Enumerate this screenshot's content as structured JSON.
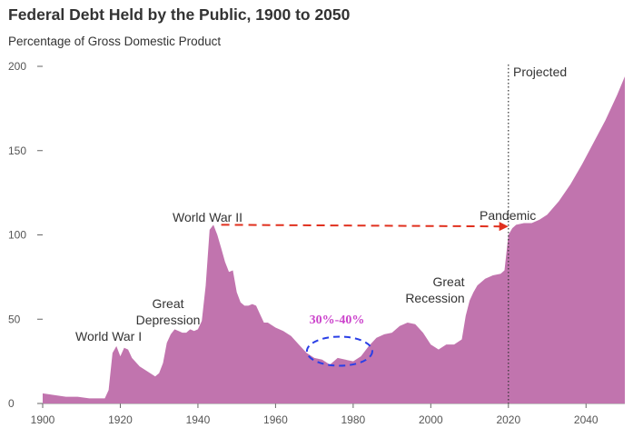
{
  "header": {
    "title": "Federal Debt Held by the Public, 1900 to 2050",
    "subtitle": "Percentage of Gross Domestic Product"
  },
  "colors": {
    "area": "#c174ae",
    "arrow": "#e0301e",
    "ellipse": "#2a3fe6",
    "range_text": "#cc44cc",
    "projection_line": "#333333"
  },
  "chart_data": {
    "type": "area",
    "title": "Federal Debt Held by the Public, 1900 to 2050",
    "subtitle": "Percentage of Gross Domestic Product",
    "xlabel": "",
    "ylabel": "",
    "xlim": [
      1900,
      2050
    ],
    "ylim": [
      0,
      200
    ],
    "x_ticks": [
      "1900",
      "1920",
      "1940",
      "1960",
      "1980",
      "2000",
      "2020",
      "2040"
    ],
    "y_ticks": [
      "0",
      "50",
      "100",
      "150",
      "200"
    ],
    "grid": false,
    "x": [
      1900,
      1903,
      1906,
      1909,
      1912,
      1914,
      1916,
      1917,
      1918,
      1919,
      1920,
      1921,
      1922,
      1923,
      1925,
      1927,
      1929,
      1930,
      1931,
      1932,
      1933,
      1934,
      1935,
      1936,
      1937,
      1938,
      1939,
      1940,
      1941,
      1942,
      1943,
      1944,
      1945,
      1946,
      1947,
      1948,
      1949,
      1950,
      1951,
      1952,
      1953,
      1954,
      1955,
      1956,
      1957,
      1958,
      1960,
      1962,
      1964,
      1966,
      1968,
      1970,
      1972,
      1974,
      1975,
      1976,
      1978,
      1980,
      1982,
      1984,
      1986,
      1988,
      1990,
      1992,
      1994,
      1996,
      1998,
      2000,
      2002,
      2004,
      2006,
      2008,
      2009,
      2010,
      2011,
      2012,
      2014,
      2016,
      2018,
      2019,
      2020,
      2021,
      2022,
      2024,
      2026,
      2028,
      2030,
      2033,
      2036,
      2039,
      2042,
      2045,
      2048,
      2050
    ],
    "values": [
      6,
      5,
      4,
      4,
      3,
      3,
      3,
      8,
      30,
      34,
      28,
      33,
      32,
      27,
      22,
      19,
      16,
      18,
      24,
      36,
      41,
      44,
      43,
      42,
      42,
      44,
      43,
      44,
      49,
      70,
      103,
      106,
      100,
      92,
      84,
      78,
      79,
      66,
      60,
      58,
      58,
      59,
      58,
      53,
      48,
      48,
      45,
      43,
      40,
      35,
      30,
      27,
      26,
      23,
      25,
      27,
      26,
      25,
      28,
      34,
      39,
      41,
      42,
      46,
      48,
      47,
      42,
      35,
      32,
      35,
      35,
      38,
      52,
      61,
      66,
      70,
      74,
      76,
      77,
      79,
      100,
      104,
      106,
      107,
      107,
      109,
      112,
      120,
      130,
      142,
      155,
      168,
      183,
      194
    ],
    "projected_from": 2020,
    "annotations": [
      "World War I",
      "Great Depression",
      "World War II",
      "Pandemic",
      "Great Recession",
      "Projected",
      "30%-40%"
    ]
  },
  "labels": {
    "ww1": "World War I",
    "depression_1": "Great",
    "depression_2": "Depression",
    "ww2": "World War II",
    "pandemic": "Pandemic",
    "recession_1": "Great",
    "recession_2": "Recession",
    "projected": "Projected",
    "range": "30%-40%"
  }
}
